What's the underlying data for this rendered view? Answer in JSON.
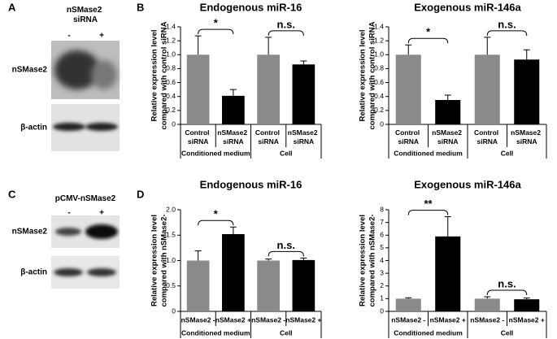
{
  "panels": [
    {
      "letter": "A",
      "header": "nSMase2 siRNA",
      "lanes": [
        "-",
        "+"
      ],
      "rows": [
        "nSMase2",
        "β-actin"
      ]
    },
    {
      "letter": "C",
      "header": "pCMV-nSMase2",
      "lanes": [
        "-",
        "+"
      ],
      "rows": [
        "nSMase2",
        "β-actin"
      ]
    }
  ],
  "chart_letters": [
    "B",
    "D"
  ],
  "chart_data": [
    {
      "type": "bar",
      "title": "Endogenous miR-16",
      "ylabel": [
        "Relative expression level",
        "compared with control siRNA"
      ],
      "categories": [
        "Control siRNA",
        "nSMase2 siRNA",
        "Control siRNA",
        "nSMase2 siRNA"
      ],
      "values": [
        1.0,
        0.41,
        1.0,
        0.86
      ],
      "errors": [
        0.27,
        0.09,
        0.25,
        0.05
      ],
      "colors": [
        "#8a8a8a",
        "#000000",
        "#8a8a8a",
        "#000000"
      ],
      "group_labels": [
        "Conditioned medium",
        "Cell"
      ],
      "annotations": [
        "*",
        "n.s."
      ],
      "ylim": [
        0,
        1.4
      ],
      "yticks": [
        0,
        0.2,
        0.4,
        0.6,
        0.8,
        {
          "value": 1,
          "label": "1.0"
        },
        1.2,
        1.4
      ]
    },
    {
      "type": "bar",
      "title": "Exogenous miR-146a",
      "ylabel": [
        "Relative expression level",
        "compared with control siRNA"
      ],
      "categories": [
        "Control siRNA",
        "nSMase2 siRNA",
        "Control siRNA",
        "nSMase2 siRNA"
      ],
      "values": [
        1.0,
        0.35,
        1.0,
        0.93
      ],
      "errors": [
        0.14,
        0.07,
        0.25,
        0.14
      ],
      "colors": [
        "#8a8a8a",
        "#000000",
        "#8a8a8a",
        "#000000"
      ],
      "group_labels": [
        "Conditioned medium",
        "Cell"
      ],
      "annotations": [
        "*",
        "n.s."
      ],
      "ylim": [
        0,
        1.4
      ],
      "yticks": [
        0,
        0.2,
        0.4,
        0.6,
        0.8,
        {
          "value": 1,
          "label": "1.0"
        },
        1.2,
        1.4
      ]
    },
    {
      "type": "bar",
      "title": "Endogenous miR-16",
      "ylabel": [
        "Relative expression level",
        "compared with nSMase2-"
      ],
      "categories": [
        "nSMase2 -",
        "nSMase2 +",
        "nSMase2 -",
        "nSMase2 +"
      ],
      "values": [
        1.0,
        1.52,
        1.0,
        1.01
      ],
      "errors": [
        0.19,
        0.14,
        0.03,
        0.04
      ],
      "colors": [
        "#8a8a8a",
        "#000000",
        "#8a8a8a",
        "#000000"
      ],
      "group_labels": [
        "Conditioned medium",
        "Cell"
      ],
      "annotations": [
        "*",
        "n.s."
      ],
      "ylim": [
        0,
        2
      ],
      "yticks": [
        0,
        0.5,
        {
          "value": 1,
          "label": "1.0"
        },
        1.5,
        {
          "value": 2,
          "label": "2.0"
        }
      ]
    },
    {
      "type": "bar",
      "title": "Exogenous miR-146a",
      "ylabel": [
        "Relative expression level",
        "compared with nSMase2-"
      ],
      "categories": [
        "nSMase2 -",
        "nSMase2 +",
        "nSMase2 -",
        "nSMase2 +"
      ],
      "values": [
        1.0,
        5.9,
        1.0,
        0.95
      ],
      "errors": [
        0.07,
        1.55,
        0.15,
        0.1
      ],
      "colors": [
        "#8a8a8a",
        "#000000",
        "#8a8a8a",
        "#000000"
      ],
      "group_labels": [
        "Conditioned medium",
        "Cell"
      ],
      "annotations": [
        "**",
        "n.s."
      ],
      "ylim": [
        0,
        8
      ],
      "yticks": [
        0,
        1,
        2,
        3,
        4,
        5,
        6,
        7,
        8
      ]
    }
  ]
}
